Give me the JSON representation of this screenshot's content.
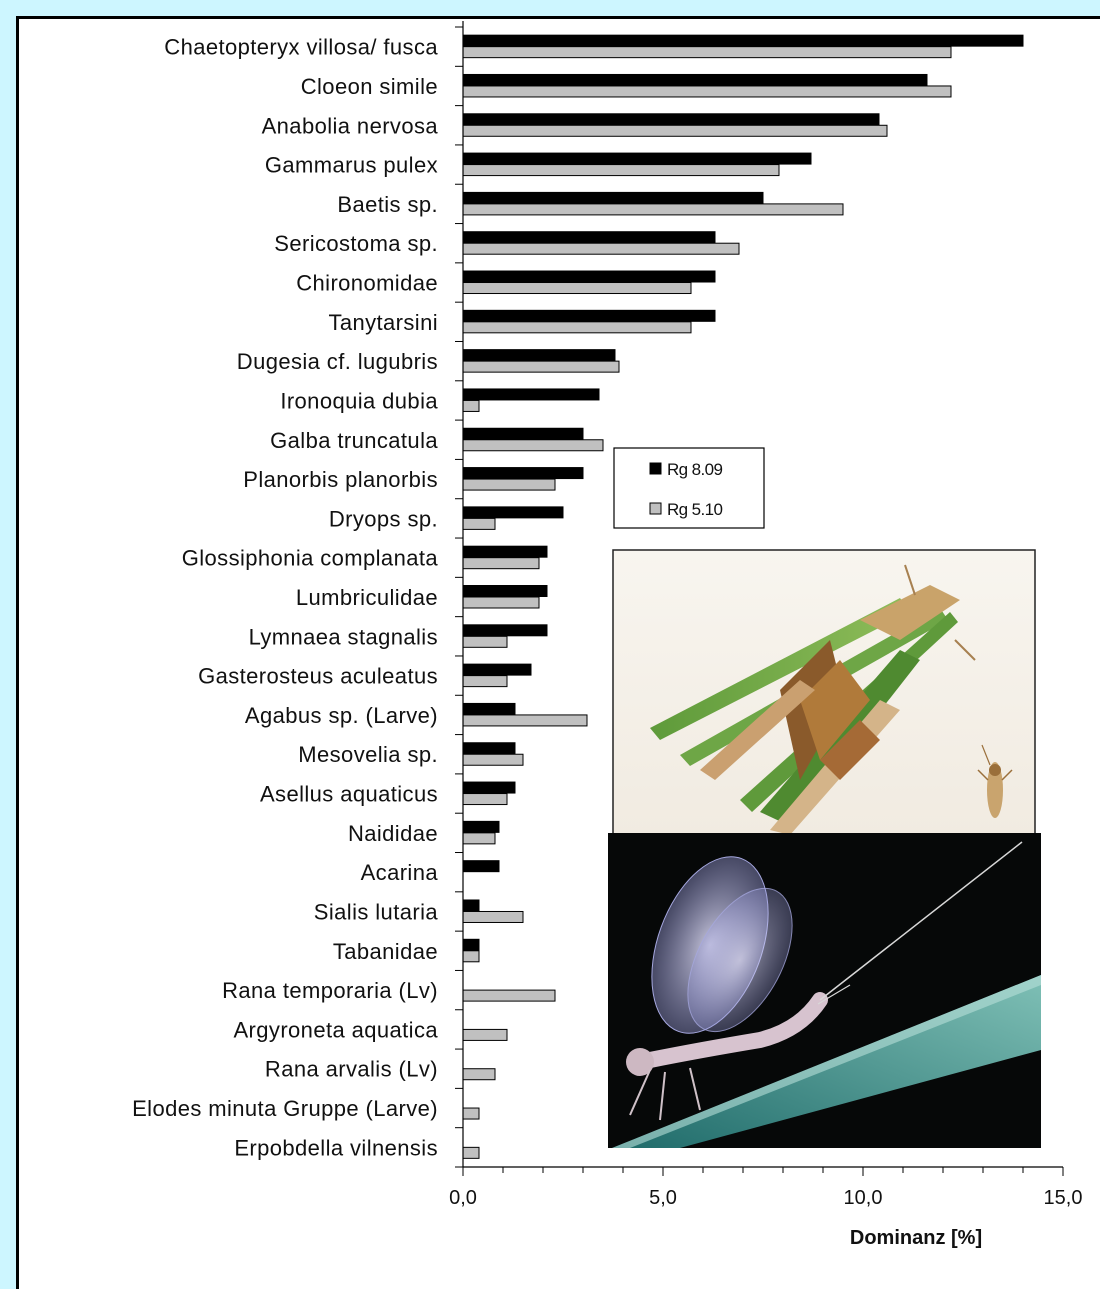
{
  "chart_data": {
    "type": "bar",
    "orientation": "horizontal",
    "xlabel": "Dominanz [%]",
    "xlim": [
      0,
      15
    ],
    "x_ticks": [
      "0,0",
      "5,0",
      "10,0",
      "15,0"
    ],
    "x_tick_values": [
      0,
      5,
      10,
      15
    ],
    "legend_position": "center-right",
    "categories": [
      "Chaetopteryx villosa/ fusca",
      "Cloeon simile",
      "Anabolia nervosa",
      "Gammarus pulex",
      "Baetis sp.",
      "Sericostoma sp.",
      "Chironomidae",
      "Tanytarsini",
      "Dugesia cf. lugubris",
      "Ironoquia dubia",
      "Galba truncatula",
      "Planorbis planorbis",
      "Dryops sp.",
      "Glossiphonia complanata",
      "Lumbriculidae",
      "Lymnaea stagnalis",
      "Gasterosteus aculeatus",
      "Agabus sp. (Larve)",
      "Mesovelia sp.",
      "Asellus aquaticus",
      "Naididae",
      "Acarina",
      "Sialis lutaria",
      "Tabanidae",
      "Rana temporaria (Lv)",
      "Argyroneta aquatica",
      "Rana arvalis (Lv)",
      "Elodes minuta Gruppe (Larve)",
      "Erpobdella vilnensis"
    ],
    "series": [
      {
        "name": "Rg 8.09",
        "color": "#000000",
        "values": [
          14.0,
          11.6,
          10.4,
          8.7,
          7.5,
          6.3,
          6.3,
          6.3,
          3.8,
          3.4,
          3.0,
          3.0,
          2.5,
          2.1,
          2.1,
          2.1,
          1.7,
          1.3,
          1.3,
          1.3,
          0.9,
          0.9,
          0.4,
          0.4,
          0,
          0,
          0,
          0,
          0
        ]
      },
      {
        "name": "Rg 5.10",
        "color": "#c0c0c0",
        "values": [
          12.2,
          12.2,
          10.6,
          7.9,
          9.5,
          6.9,
          5.7,
          5.7,
          3.9,
          0.4,
          3.5,
          2.3,
          0.8,
          1.9,
          1.9,
          1.1,
          1.1,
          3.1,
          1.5,
          1.1,
          0.8,
          0,
          1.5,
          0.4,
          2.3,
          1.1,
          0.8,
          0.4,
          0.4
        ]
      }
    ]
  },
  "photos": [
    {
      "name": "caddisfly-larva-photo"
    },
    {
      "name": "mayfly-photo"
    }
  ]
}
